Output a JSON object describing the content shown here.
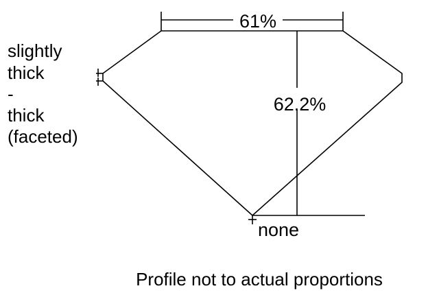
{
  "girdle_label": [
    "slightly",
    "thick",
    "-",
    "thick",
    "(faceted)"
  ],
  "table_label": "61%",
  "depth_label": "62.2%",
  "culet_label": "none",
  "caption": "Profile not to actual proportions"
}
